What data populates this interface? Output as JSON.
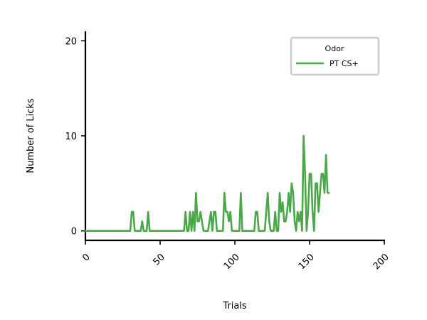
{
  "chart_data": {
    "type": "line",
    "title": "",
    "xlabel": "Trials",
    "ylabel": "Number of Licks",
    "xlim": [
      0,
      200
    ],
    "ylim": [
      -1,
      21
    ],
    "xticks": [
      0,
      50,
      100,
      150,
      200
    ],
    "yticks": [
      0,
      10,
      20
    ],
    "xtick_labels": [
      "0",
      "50",
      "100",
      "150",
      "200"
    ],
    "ytick_labels": [
      "0",
      "10",
      "20"
    ],
    "grid": false,
    "legend": {
      "title": "Odor",
      "position": "top-right"
    },
    "series": [
      {
        "name": "PT CS+",
        "color": "#4aa84a",
        "x": [
          0,
          1,
          2,
          3,
          4,
          5,
          6,
          7,
          8,
          9,
          10,
          11,
          12,
          13,
          14,
          15,
          16,
          17,
          18,
          19,
          20,
          21,
          22,
          23,
          24,
          25,
          26,
          27,
          28,
          29,
          30,
          31,
          32,
          33,
          34,
          35,
          36,
          37,
          38,
          39,
          40,
          41,
          42,
          43,
          44,
          45,
          46,
          47,
          48,
          49,
          50,
          51,
          52,
          53,
          54,
          55,
          56,
          57,
          58,
          59,
          60,
          61,
          62,
          63,
          64,
          65,
          66,
          67,
          68,
          69,
          70,
          71,
          72,
          73,
          74,
          75,
          76,
          77,
          78,
          79,
          80,
          81,
          82,
          83,
          84,
          85,
          86,
          87,
          88,
          89,
          90,
          91,
          92,
          93,
          94,
          95,
          96,
          97,
          98,
          99,
          100,
          101,
          102,
          103,
          104,
          105,
          106,
          107,
          108,
          109,
          110,
          111,
          112,
          113,
          114,
          115,
          116,
          117,
          118,
          119,
          120,
          121,
          122,
          123,
          124,
          125,
          126,
          127,
          128,
          129,
          130,
          131,
          132,
          133,
          134,
          135,
          136,
          137,
          138,
          139,
          140,
          141,
          142,
          143,
          144,
          145,
          146,
          147,
          148,
          149,
          150,
          151,
          152,
          153,
          154,
          155,
          156,
          157,
          158,
          159,
          160,
          161,
          162,
          163
        ],
        "values": [
          0,
          0,
          0,
          0,
          0,
          0,
          0,
          0,
          0,
          0,
          0,
          0,
          0,
          0,
          0,
          0,
          0,
          0,
          0,
          0,
          0,
          0,
          0,
          0,
          0,
          0,
          0,
          0,
          0,
          0,
          0,
          2,
          2,
          0,
          0,
          0,
          0,
          0,
          1,
          0,
          0,
          0,
          2,
          0,
          0,
          0,
          0,
          0,
          0,
          0,
          0,
          0,
          0,
          0,
          0,
          0,
          0,
          0,
          0,
          0,
          0,
          0,
          0,
          0,
          0,
          0,
          0,
          2,
          0,
          0,
          2,
          0,
          2,
          0,
          4,
          1,
          1,
          2,
          1,
          0,
          0,
          0,
          0,
          1,
          2,
          0,
          2,
          2,
          0,
          0,
          0,
          0,
          0,
          4,
          2,
          2,
          1,
          2,
          0,
          0,
          0,
          0,
          0,
          0,
          4,
          0,
          0,
          0,
          0,
          0,
          0,
          0,
          0,
          0,
          2,
          2,
          0,
          0,
          0,
          0,
          0,
          2,
          4,
          1,
          0,
          0,
          0,
          2,
          0,
          0,
          4,
          2,
          3,
          1,
          1,
          2,
          4,
          2,
          5,
          4,
          1,
          0,
          2,
          1,
          2,
          0,
          10,
          6,
          0,
          2,
          6,
          6,
          2,
          0,
          5,
          5,
          2,
          4,
          6,
          6,
          4,
          8,
          4,
          4
        ]
      }
    ]
  }
}
